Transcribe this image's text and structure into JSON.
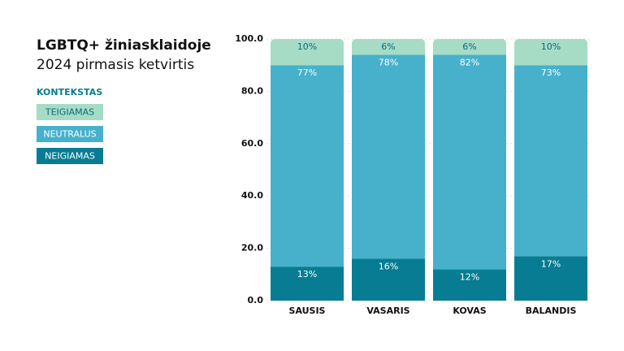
{
  "chart_data": {
    "type": "stacked_bar",
    "title": "LGBTQ+ žiniasklaidoje",
    "subtitle": "2024 pirmasis ketvirtis",
    "legend_title": "KONTEKSTAS",
    "categories": [
      "SAUSIS",
      "VASARIS",
      "KOVAS",
      "BALANDIS"
    ],
    "series": [
      {
        "name": "NEIGIAMAS",
        "color": "#087c92",
        "values": [
          13,
          16,
          12,
          17
        ],
        "value_labels": [
          "13%",
          "16%",
          "12%",
          "17%"
        ]
      },
      {
        "name": "NEUTRALUS",
        "color": "#47b1cb",
        "values": [
          77,
          78,
          82,
          73
        ],
        "value_labels": [
          "77%",
          "78%",
          "82%",
          "73%"
        ]
      },
      {
        "name": "TEIGIAMAS",
        "color": "#a6dcc6",
        "values": [
          10,
          6,
          6,
          10
        ],
        "value_labels": [
          "10%",
          "6%",
          "6%",
          "10%"
        ]
      }
    ],
    "ylim": [
      0,
      100
    ],
    "yticks": [
      {
        "value": 0,
        "label": "0.0"
      },
      {
        "value": 20,
        "label": "20.0"
      },
      {
        "value": 40,
        "label": "40.0"
      },
      {
        "value": 60,
        "label": "60.0"
      },
      {
        "value": 80,
        "label": "80.0"
      },
      {
        "value": 100,
        "label": "100.0"
      }
    ],
    "grid": true,
    "legend": "top-left"
  }
}
